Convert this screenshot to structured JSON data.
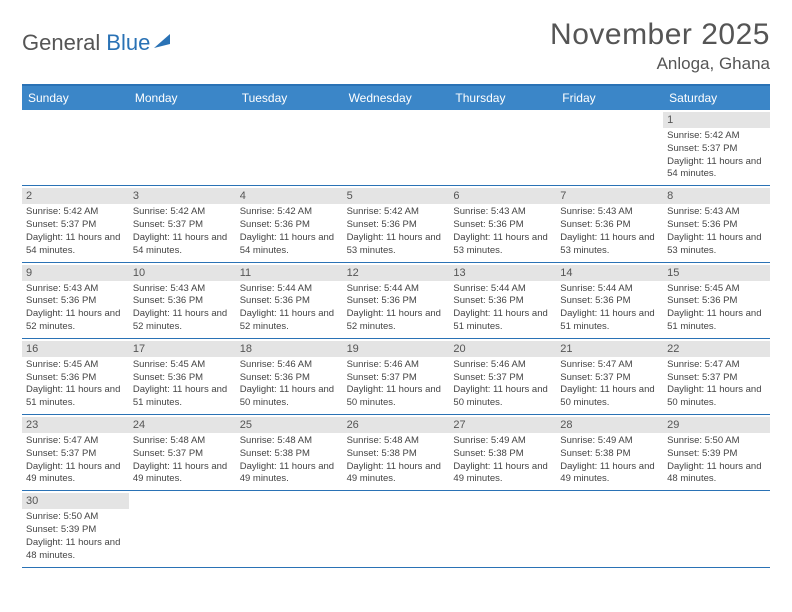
{
  "logo": {
    "part1": "General",
    "part2": "Blue"
  },
  "title": "November 2025",
  "location": "Anloga, Ghana",
  "dayNames": [
    "Sunday",
    "Monday",
    "Tuesday",
    "Wednesday",
    "Thursday",
    "Friday",
    "Saturday"
  ],
  "colors": {
    "header_bg": "#3b86c8",
    "border": "#2a72b5",
    "daynum_bg": "#e4e4e4",
    "text": "#444444"
  },
  "firstWeekday": 6,
  "daysInMonth": 30,
  "days": {
    "1": {
      "sunrise": "5:42 AM",
      "sunset": "5:37 PM",
      "daylight": "11 hours and 54 minutes."
    },
    "2": {
      "sunrise": "5:42 AM",
      "sunset": "5:37 PM",
      "daylight": "11 hours and 54 minutes."
    },
    "3": {
      "sunrise": "5:42 AM",
      "sunset": "5:37 PM",
      "daylight": "11 hours and 54 minutes."
    },
    "4": {
      "sunrise": "5:42 AM",
      "sunset": "5:36 PM",
      "daylight": "11 hours and 54 minutes."
    },
    "5": {
      "sunrise": "5:42 AM",
      "sunset": "5:36 PM",
      "daylight": "11 hours and 53 minutes."
    },
    "6": {
      "sunrise": "5:43 AM",
      "sunset": "5:36 PM",
      "daylight": "11 hours and 53 minutes."
    },
    "7": {
      "sunrise": "5:43 AM",
      "sunset": "5:36 PM",
      "daylight": "11 hours and 53 minutes."
    },
    "8": {
      "sunrise": "5:43 AM",
      "sunset": "5:36 PM",
      "daylight": "11 hours and 53 minutes."
    },
    "9": {
      "sunrise": "5:43 AM",
      "sunset": "5:36 PM",
      "daylight": "11 hours and 52 minutes."
    },
    "10": {
      "sunrise": "5:43 AM",
      "sunset": "5:36 PM",
      "daylight": "11 hours and 52 minutes."
    },
    "11": {
      "sunrise": "5:44 AM",
      "sunset": "5:36 PM",
      "daylight": "11 hours and 52 minutes."
    },
    "12": {
      "sunrise": "5:44 AM",
      "sunset": "5:36 PM",
      "daylight": "11 hours and 52 minutes."
    },
    "13": {
      "sunrise": "5:44 AM",
      "sunset": "5:36 PM",
      "daylight": "11 hours and 51 minutes."
    },
    "14": {
      "sunrise": "5:44 AM",
      "sunset": "5:36 PM",
      "daylight": "11 hours and 51 minutes."
    },
    "15": {
      "sunrise": "5:45 AM",
      "sunset": "5:36 PM",
      "daylight": "11 hours and 51 minutes."
    },
    "16": {
      "sunrise": "5:45 AM",
      "sunset": "5:36 PM",
      "daylight": "11 hours and 51 minutes."
    },
    "17": {
      "sunrise": "5:45 AM",
      "sunset": "5:36 PM",
      "daylight": "11 hours and 51 minutes."
    },
    "18": {
      "sunrise": "5:46 AM",
      "sunset": "5:36 PM",
      "daylight": "11 hours and 50 minutes."
    },
    "19": {
      "sunrise": "5:46 AM",
      "sunset": "5:37 PM",
      "daylight": "11 hours and 50 minutes."
    },
    "20": {
      "sunrise": "5:46 AM",
      "sunset": "5:37 PM",
      "daylight": "11 hours and 50 minutes."
    },
    "21": {
      "sunrise": "5:47 AM",
      "sunset": "5:37 PM",
      "daylight": "11 hours and 50 minutes."
    },
    "22": {
      "sunrise": "5:47 AM",
      "sunset": "5:37 PM",
      "daylight": "11 hours and 50 minutes."
    },
    "23": {
      "sunrise": "5:47 AM",
      "sunset": "5:37 PM",
      "daylight": "11 hours and 49 minutes."
    },
    "24": {
      "sunrise": "5:48 AM",
      "sunset": "5:37 PM",
      "daylight": "11 hours and 49 minutes."
    },
    "25": {
      "sunrise": "5:48 AM",
      "sunset": "5:38 PM",
      "daylight": "11 hours and 49 minutes."
    },
    "26": {
      "sunrise": "5:48 AM",
      "sunset": "5:38 PM",
      "daylight": "11 hours and 49 minutes."
    },
    "27": {
      "sunrise": "5:49 AM",
      "sunset": "5:38 PM",
      "daylight": "11 hours and 49 minutes."
    },
    "28": {
      "sunrise": "5:49 AM",
      "sunset": "5:38 PM",
      "daylight": "11 hours and 49 minutes."
    },
    "29": {
      "sunrise": "5:50 AM",
      "sunset": "5:39 PM",
      "daylight": "11 hours and 48 minutes."
    },
    "30": {
      "sunrise": "5:50 AM",
      "sunset": "5:39 PM",
      "daylight": "11 hours and 48 minutes."
    }
  },
  "labels": {
    "sunrise": "Sunrise: ",
    "sunset": "Sunset: ",
    "daylight": "Daylight: "
  }
}
